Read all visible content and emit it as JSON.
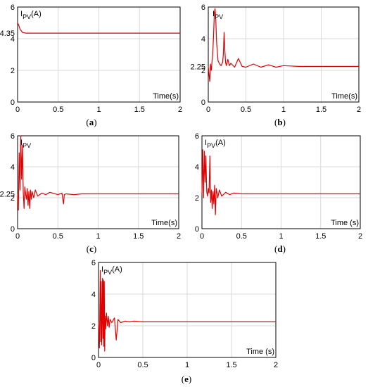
{
  "chart_data": [
    {
      "type": "line",
      "caption": "(a)",
      "ylabel_main": "I",
      "ylabel_sub": "PV",
      "ylabel_unit": "(A)",
      "xlabel": "Time(s)",
      "xlim": [
        0,
        2
      ],
      "ylim": [
        0,
        6
      ],
      "xticks": [
        "0",
        "0.5",
        "1",
        "1.5",
        "2"
      ],
      "yticks": [
        "0",
        "2",
        "4",
        "6"
      ],
      "annotation": {
        "text": "4.35",
        "value": 4.35
      },
      "series": [
        {
          "color": "#e00000",
          "x": [
            0,
            0.01,
            0.03,
            0.06,
            0.1,
            2
          ],
          "y": [
            5.0,
            4.9,
            4.6,
            4.4,
            4.35,
            4.35
          ]
        }
      ]
    },
    {
      "type": "line",
      "caption": "(b)",
      "ylabel_main": "I",
      "ylabel_sub": "PV",
      "ylabel_unit": "",
      "xlabel": "Time(s)",
      "xlim": [
        0,
        2
      ],
      "ylim": [
        0,
        6
      ],
      "xticks": [
        "0",
        "0.5",
        "1",
        "1.5",
        "2"
      ],
      "yticks": [
        "0",
        "2",
        "4",
        "6"
      ],
      "annotation": {
        "text": "2.25",
        "value": 2.25
      },
      "series": [
        {
          "color": "#e00000",
          "x": [
            0,
            0.02,
            0.03,
            0.04,
            0.05,
            0.06,
            0.07,
            0.08,
            0.09,
            0.1,
            0.11,
            0.13,
            0.15,
            0.17,
            0.19,
            0.2,
            0.21,
            0.22,
            0.23,
            0.24,
            0.26,
            0.28,
            0.3,
            0.35,
            0.4,
            0.45,
            0.5,
            0.6,
            0.7,
            0.8,
            0.9,
            1.0,
            1.2,
            1.5,
            2.0
          ],
          "y": [
            2.25,
            1.3,
            2.4,
            2.0,
            2.6,
            3.1,
            4.2,
            5.6,
            5.9,
            5.2,
            3.8,
            2.6,
            2.4,
            2.3,
            2.5,
            3.0,
            4.4,
            3.3,
            2.5,
            2.3,
            2.7,
            2.3,
            2.45,
            2.2,
            2.75,
            2.25,
            2.2,
            2.4,
            2.2,
            2.35,
            2.2,
            2.3,
            2.25,
            2.25,
            2.25
          ]
        }
      ]
    },
    {
      "type": "line",
      "caption": "(c)",
      "ylabel_main": "I",
      "ylabel_sub": "PV",
      "ylabel_unit": "",
      "xlabel": "Time(s)",
      "xlim": [
        0,
        2
      ],
      "ylim": [
        0,
        6
      ],
      "xticks": [
        "0",
        "0.5",
        "1",
        "1.5",
        "2"
      ],
      "yticks": [
        "0",
        "2",
        "4",
        "6"
      ],
      "annotation": {
        "text": "2.25",
        "value": 2.25
      },
      "series": [
        {
          "color": "#e00000",
          "x": [
            0,
            0.01,
            0.02,
            0.03,
            0.04,
            0.05,
            0.06,
            0.07,
            0.08,
            0.09,
            0.1,
            0.11,
            0.12,
            0.13,
            0.14,
            0.15,
            0.16,
            0.17,
            0.18,
            0.2,
            0.22,
            0.25,
            0.3,
            0.35,
            0.4,
            0.5,
            0.55,
            0.57,
            0.58,
            0.6,
            0.7,
            0.8,
            1.0,
            1.5,
            2.0
          ],
          "y": [
            2.25,
            1.2,
            4.9,
            2.5,
            6.0,
            3.2,
            5.4,
            2.4,
            1.3,
            2.7,
            2.2,
            1.9,
            2.6,
            1.5,
            2.4,
            1.3,
            2.5,
            1.9,
            2.4,
            2.0,
            2.5,
            2.1,
            2.3,
            2.2,
            2.35,
            2.2,
            2.3,
            1.6,
            2.2,
            2.25,
            2.2,
            2.25,
            2.25,
            2.25,
            2.25
          ]
        }
      ]
    },
    {
      "type": "line",
      "caption": "(d)",
      "ylabel_main": "I",
      "ylabel_sub": "PV",
      "ylabel_unit": "(A)",
      "xlabel": "Time (s)",
      "xlim": [
        0,
        2
      ],
      "ylim": [
        0,
        6
      ],
      "xticks": [
        "0",
        "0.5",
        "1",
        "1.5",
        "2"
      ],
      "yticks": [
        "0",
        "2",
        "4",
        "6"
      ],
      "annotation": null,
      "series": [
        {
          "color": "#e00000",
          "x": [
            0,
            0.01,
            0.02,
            0.03,
            0.04,
            0.05,
            0.06,
            0.07,
            0.08,
            0.09,
            0.1,
            0.11,
            0.12,
            0.13,
            0.14,
            0.15,
            0.16,
            0.17,
            0.18,
            0.2,
            0.22,
            0.25,
            0.3,
            0.35,
            0.4,
            0.5,
            0.6,
            0.8,
            1.0,
            1.5,
            2.0
          ],
          "y": [
            2.25,
            5.1,
            2.0,
            5.0,
            3.0,
            4.7,
            2.4,
            2.1,
            2.6,
            2.3,
            4.7,
            1.7,
            2.5,
            1.3,
            2.4,
            1.6,
            2.8,
            0.9,
            2.6,
            2.0,
            2.5,
            2.1,
            2.35,
            2.2,
            2.3,
            2.25,
            2.25,
            2.25,
            2.25,
            2.25,
            2.25
          ]
        }
      ]
    },
    {
      "type": "line",
      "caption": "(e)",
      "ylabel_main": "I",
      "ylabel_sub": "PV",
      "ylabel_unit": "(A)",
      "xlabel": "Time (s)",
      "xlim": [
        0,
        2
      ],
      "ylim": [
        0,
        6
      ],
      "xticks": [
        "0",
        "0.5",
        "1",
        "1.5",
        "2"
      ],
      "yticks": [
        "0",
        "2",
        "4",
        "6"
      ],
      "annotation": null,
      "series": [
        {
          "color": "#e00000",
          "x": [
            0,
            0.01,
            0.02,
            0.025,
            0.03,
            0.035,
            0.04,
            0.045,
            0.05,
            0.055,
            0.06,
            0.065,
            0.07,
            0.075,
            0.08,
            0.09,
            0.1,
            0.11,
            0.12,
            0.13,
            0.15,
            0.18,
            0.2,
            0.22,
            0.25,
            0.3,
            0.35,
            0.4,
            0.5,
            0.7,
            1.0,
            1.5,
            2.0
          ],
          "y": [
            2.25,
            0.6,
            5.5,
            1.0,
            4.8,
            0.8,
            2.4,
            5.0,
            1.2,
            4.9,
            0.7,
            4.8,
            0.4,
            2.6,
            1.8,
            2.8,
            2.0,
            2.6,
            1.9,
            2.4,
            2.2,
            2.5,
            1.1,
            2.4,
            2.2,
            2.3,
            2.25,
            2.3,
            2.25,
            2.25,
            2.25,
            2.25,
            2.25
          ]
        }
      ]
    }
  ]
}
